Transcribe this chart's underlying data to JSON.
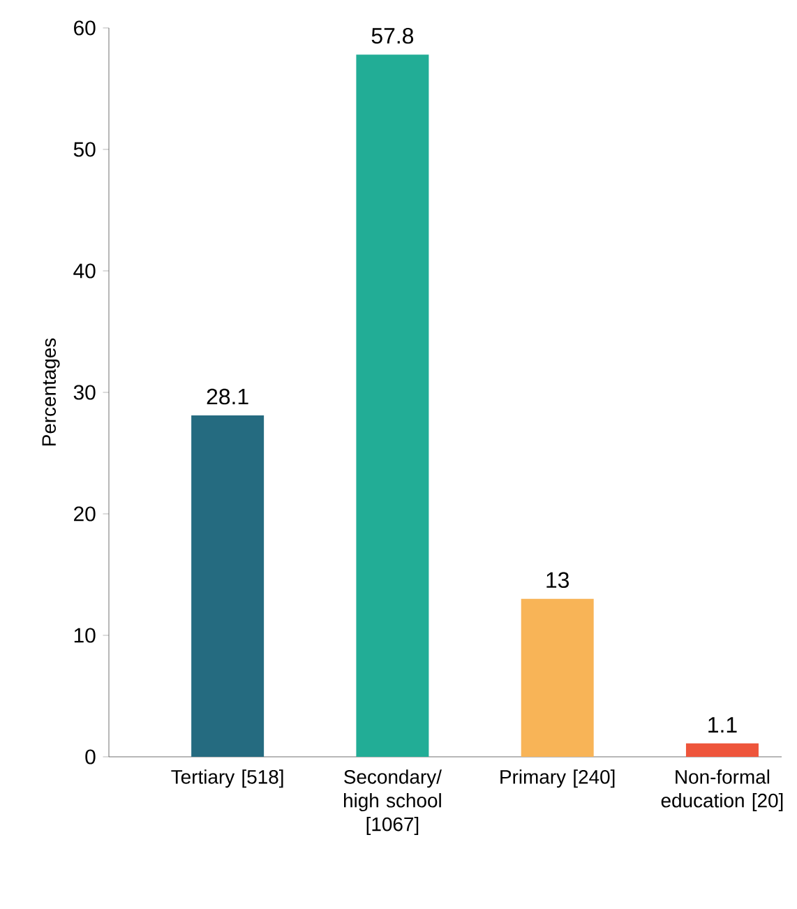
{
  "chart_data": {
    "type": "bar",
    "ylabel": "Percentages",
    "categories": [
      "Tertiary [518]",
      "Secondary/ high school [1067]",
      "Primary [240]",
      "Non-formal education [20]"
    ],
    "values": [
      28.1,
      57.8,
      13,
      1.1
    ],
    "colors": [
      "#256b80",
      "#22ad96",
      "#f8b457",
      "#ee553b"
    ],
    "ylim": [
      0,
      60
    ],
    "yticks": [
      0,
      10,
      20,
      30,
      40,
      50,
      60
    ],
    "grid": false,
    "data_labels": true
  }
}
